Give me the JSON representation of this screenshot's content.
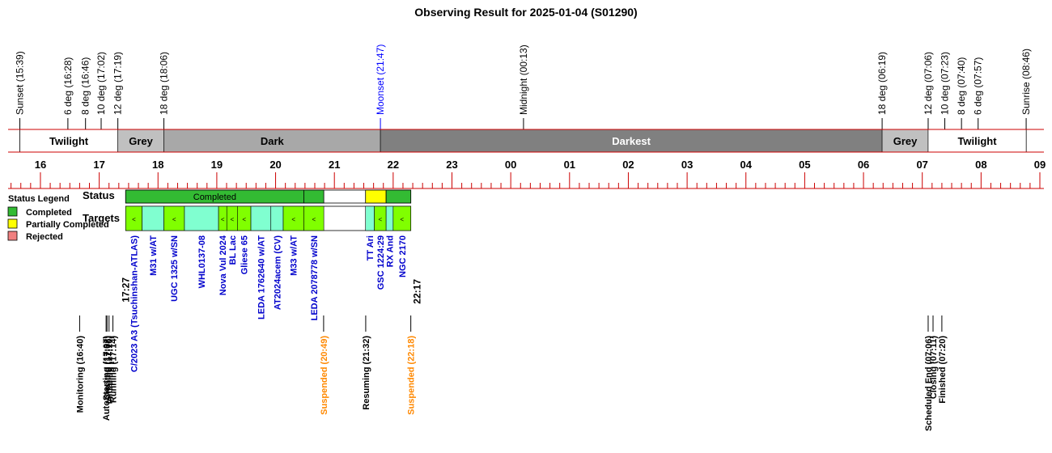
{
  "title": "Observing Result for 2025-01-04 (S01290)",
  "colors": {
    "twilight": "#ffffff",
    "grey": "#c0c0c0",
    "dark": "#a8a8a8",
    "darkest": "#808080",
    "axis": "#cc0000",
    "completed": "#33bb33",
    "partial": "#ffff00",
    "rejected": "#f08080",
    "target_green": "#80ff00",
    "target_cyan": "#80ffd0",
    "label_blue": "#0000cc",
    "label_orange": "#ff8800",
    "moon_blue": "#0000ff"
  },
  "chart_data": {
    "type": "timeline",
    "time_axis": {
      "range_hours": [
        15.45,
        33.0
      ],
      "tick_labels": [
        "16",
        "17",
        "18",
        "19",
        "20",
        "21",
        "22",
        "23",
        "00",
        "01",
        "02",
        "03",
        "04",
        "05",
        "06",
        "07",
        "08",
        "09"
      ],
      "tick_hours": [
        16,
        17,
        18,
        19,
        20,
        21,
        22,
        23,
        24,
        25,
        26,
        27,
        28,
        29,
        30,
        31,
        32,
        33
      ]
    },
    "sky_events": [
      {
        "label": "Sunset (15:39)",
        "hour": 15.65,
        "color": "black"
      },
      {
        "label": "6 deg (16:28)",
        "hour": 16.467,
        "color": "black"
      },
      {
        "label": "8 deg (16:46)",
        "hour": 16.767,
        "color": "black"
      },
      {
        "label": "10 deg (17:02)",
        "hour": 17.033,
        "color": "black"
      },
      {
        "label": "12 deg (17:19)",
        "hour": 17.317,
        "color": "black"
      },
      {
        "label": "18 deg (18:06)",
        "hour": 18.1,
        "color": "black"
      },
      {
        "label": "Moonset (21:47)",
        "hour": 21.783,
        "color": "blue"
      },
      {
        "label": "Midnight (00:13)",
        "hour": 24.217,
        "color": "black"
      },
      {
        "label": "18 deg (06:19)",
        "hour": 30.317,
        "color": "black"
      },
      {
        "label": "12 deg (07:06)",
        "hour": 31.1,
        "color": "black"
      },
      {
        "label": "10 deg (07:23)",
        "hour": 31.383,
        "color": "black"
      },
      {
        "label": "8 deg (07:40)",
        "hour": 31.667,
        "color": "black"
      },
      {
        "label": "6 deg (07:57)",
        "hour": 31.95,
        "color": "black"
      },
      {
        "label": "Sunrise (08:46)",
        "hour": 32.767,
        "color": "black"
      }
    ],
    "phases": [
      {
        "label": "Twilight",
        "start": 15.65,
        "end": 17.317,
        "color": "twilight"
      },
      {
        "label": "Grey",
        "start": 17.317,
        "end": 18.1,
        "color": "grey"
      },
      {
        "label": "Dark",
        "start": 18.1,
        "end": 21.783,
        "color": "dark"
      },
      {
        "label": "Darkest",
        "start": 21.783,
        "end": 30.317,
        "color": "darkest"
      },
      {
        "label": "Grey",
        "start": 30.317,
        "end": 31.1,
        "color": "grey"
      },
      {
        "label": "Twilight",
        "start": 31.1,
        "end": 32.767,
        "color": "twilight"
      }
    ],
    "status_label": "Status",
    "targets_label": "Targets",
    "status_bars": [
      {
        "start": 17.45,
        "end": 20.48,
        "status": "completed",
        "label": "Completed"
      },
      {
        "start": 20.48,
        "end": 20.82,
        "status": "completed",
        "label": ""
      },
      {
        "start": 21.53,
        "end": 21.88,
        "status": "partial",
        "label": ""
      },
      {
        "start": 21.88,
        "end": 22.3,
        "status": "completed",
        "label": ""
      }
    ],
    "target_blocks": [
      {
        "name": "C/2023 A3 (Tsuchinshan-ATLAS)",
        "start": 17.45,
        "end": 17.73,
        "type": "green",
        "marked": true
      },
      {
        "name": "M31 w/AT",
        "start": 17.73,
        "end": 18.1,
        "type": "cyan",
        "marked": false
      },
      {
        "name": "UGC 1325 w/SN",
        "start": 18.1,
        "end": 18.45,
        "type": "green",
        "marked": true
      },
      {
        "name": "WHL0137-08",
        "start": 18.45,
        "end": 19.03,
        "type": "cyan",
        "marked": false
      },
      {
        "name": "Nova Vul 2024",
        "start": 19.03,
        "end": 19.17,
        "type": "green",
        "marked": true
      },
      {
        "name": "BL Lac",
        "start": 19.17,
        "end": 19.35,
        "type": "green",
        "marked": true
      },
      {
        "name": "Gliese 65",
        "start": 19.35,
        "end": 19.58,
        "type": "green",
        "marked": true
      },
      {
        "name": "LEDA 1762640 w/AT",
        "start": 19.58,
        "end": 19.92,
        "type": "cyan",
        "marked": false
      },
      {
        "name": "AT2024acem (CV)",
        "start": 19.92,
        "end": 20.13,
        "type": "cyan",
        "marked": false
      },
      {
        "name": "M33 w/AT",
        "start": 20.13,
        "end": 20.48,
        "type": "green",
        "marked": true
      },
      {
        "name": "LEDA 2078778 w/SN",
        "start": 20.48,
        "end": 20.82,
        "type": "green",
        "marked": true
      },
      {
        "name": "TT Ari",
        "start": 21.53,
        "end": 21.68,
        "type": "cyan",
        "marked": false
      },
      {
        "name": "GSC 1224:29",
        "start": 21.68,
        "end": 21.88,
        "type": "green",
        "marked": true
      },
      {
        "name": "RX And",
        "start": 21.88,
        "end": 22.0,
        "type": "cyan",
        "marked": false
      },
      {
        "name": "NGC 2170",
        "start": 22.0,
        "end": 22.3,
        "type": "green",
        "marked": true
      }
    ],
    "start_time_label": "17:27",
    "end_time_label": "22:17",
    "system_events": [
      {
        "label": "Monitoring (16:40)",
        "hour": 16.667,
        "color": "black"
      },
      {
        "label": "AutoStarting (17:07)",
        "hour": 17.117,
        "color": "black"
      },
      {
        "label": "Created (17:08)",
        "hour": 17.133,
        "color": "black"
      },
      {
        "label": "Initiating (17:10)",
        "hour": 17.167,
        "color": "black"
      },
      {
        "label": "Running (17:14)",
        "hour": 17.233,
        "color": "black"
      },
      {
        "label": "Suspended (20:49)",
        "hour": 20.817,
        "color": "orange"
      },
      {
        "label": "Resuming (21:32)",
        "hour": 21.533,
        "color": "black"
      },
      {
        "label": "Suspended (22:18)",
        "hour": 22.3,
        "color": "orange"
      },
      {
        "label": "Scheduled End (07:06)",
        "hour": 31.1,
        "color": "black"
      },
      {
        "label": "Closing (07:11)",
        "hour": 31.183,
        "color": "black"
      },
      {
        "label": "Finished (07:20)",
        "hour": 31.333,
        "color": "black"
      }
    ],
    "legend": {
      "title": "Status Legend",
      "items": [
        {
          "label": "Completed",
          "color": "completed"
        },
        {
          "label": "Partially Completed",
          "color": "partial"
        },
        {
          "label": "Rejected",
          "color": "rejected"
        }
      ]
    }
  }
}
